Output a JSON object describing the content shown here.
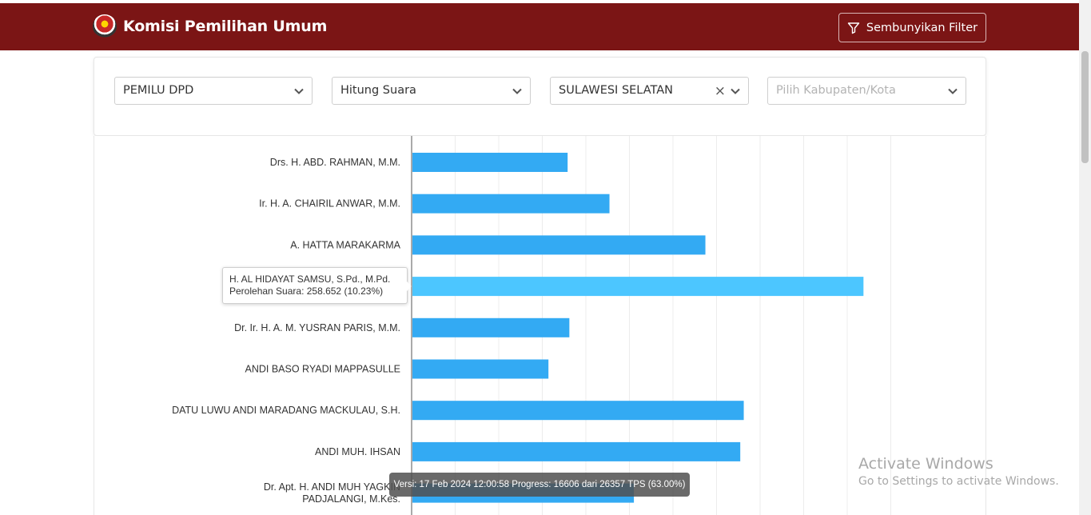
{
  "header": {
    "title": "Komisi Pemilihan Umum",
    "filter_button_label": "Sembunyikan Filter"
  },
  "filters": {
    "election": "PEMILU DPD",
    "mode": "Hitung Suara",
    "province": "SULAWESI SELATAN",
    "regency_placeholder": "Pilih Kabupaten/Kota"
  },
  "tooltip": {
    "name": "H. AL HIDAYAT SAMSU, S.Pd., M.Pd.",
    "votes_line": "Perolehan Suara: 258.652 (10.23%)"
  },
  "version_text": "Versi: 17 Feb 2024 12:00:58 Progress: 16606 dari 26357 TPS (63.00%)",
  "watermark": {
    "line1": "Activate Windows",
    "line2": "Go to Settings to activate Windows."
  },
  "chart_data": {
    "type": "bar",
    "orientation": "horizontal",
    "categories": [
      "Drs. H. ABD. RAHMAN, M.M.",
      "Ir. H. A. CHAIRIL ANWAR, M.M.",
      "A. HATTA MARAKARMA",
      "H. AL HIDAYAT SAMSU, S.Pd., M.Pd.",
      "Dr. Ir. H. A. M. YUSRAN PARIS, M.M.",
      "ANDI BASO RYADI MAPPASULLE",
      "DATU LUWU ANDI MARADANG MACKULAU, S.H.",
      "ANDI MUH. IHSAN",
      "Dr. Apt. H. ANDI MUH YAGKIN PADJALANGI, M.Kes."
    ],
    "values": [
      89000,
      113000,
      168000,
      258652,
      90000,
      78000,
      190000,
      188000,
      127000
    ],
    "highlight_index": 3,
    "xlim": [
      0,
      330000
    ],
    "grid": true,
    "colors": {
      "bar": "#33aaf3",
      "highlight": "#4cc6ff"
    }
  }
}
